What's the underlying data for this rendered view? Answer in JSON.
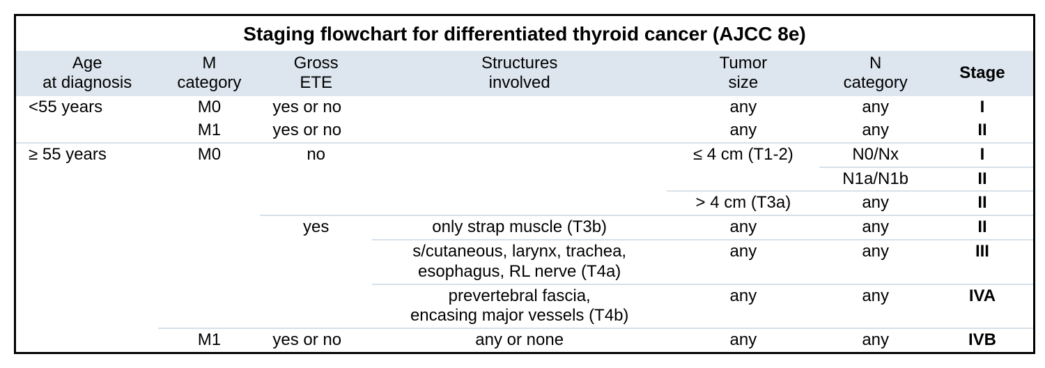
{
  "title": "Staging flowchart for differentiated thyroid cancer (AJCC 8e)",
  "colors": {
    "header_bg": "#dde6ef",
    "rule": "#d6e0ea",
    "border": "#000000",
    "text": "#000000",
    "background": "#ffffff"
  },
  "typography": {
    "title_fontsize_pt": 21,
    "cell_fontsize_pt": 18,
    "font_family": "Arial"
  },
  "columns": [
    {
      "key": "age",
      "label": "Age\nat diagnosis",
      "width_pct": 14
    },
    {
      "key": "m",
      "label": "M\ncategory",
      "width_pct": 10
    },
    {
      "key": "ete",
      "label": "Gross\nETE",
      "width_pct": 11
    },
    {
      "key": "struct",
      "label": "Structures\ninvolved",
      "width_pct": 29
    },
    {
      "key": "size",
      "label": "Tumor\nsize",
      "width_pct": 15
    },
    {
      "key": "n",
      "label": "N\ncategory",
      "width_pct": 11
    },
    {
      "key": "stage",
      "label": "Stage",
      "width_pct": 10,
      "bold": true
    }
  ],
  "rows": [
    {
      "age": "<55 years",
      "m": "M0",
      "ete": "yes or no",
      "struct": "",
      "size": "any",
      "n": "any",
      "stage": "I",
      "sep_from": null
    },
    {
      "age": "",
      "m": "M1",
      "ete": "yes or no",
      "struct": "",
      "size": "any",
      "n": "any",
      "stage": "II",
      "sep_from": null
    },
    {
      "age": "≥ 55 years",
      "m": "M0",
      "ete": "no",
      "struct": "",
      "size": "≤ 4 cm (T1-2)",
      "n": "N0/Nx",
      "stage": "I",
      "sep_from": 1
    },
    {
      "age": "",
      "m": "",
      "ete": "",
      "struct": "",
      "size": "",
      "n": "N1a/N1b",
      "stage": "II",
      "sep_from": 6
    },
    {
      "age": "",
      "m": "",
      "ete": "",
      "struct": "",
      "size": "> 4 cm (T3a)",
      "n": "any",
      "stage": "II",
      "sep_from": 5
    },
    {
      "age": "",
      "m": "",
      "ete": "yes",
      "struct": "only strap muscle (T3b)",
      "size": "any",
      "n": "any",
      "stage": "II",
      "sep_from": 3
    },
    {
      "age": "",
      "m": "",
      "ete": "",
      "struct": "s/cutaneous, larynx, trachea,\nesophagus, RL nerve (T4a)",
      "size": "any",
      "n": "any",
      "stage": "III",
      "sep_from": 4
    },
    {
      "age": "",
      "m": "",
      "ete": "",
      "struct": "prevertebral fascia,\nencasing major vessels (T4b)",
      "size": "any",
      "n": "any",
      "stage": "IVA",
      "sep_from": 4
    },
    {
      "age": "",
      "m": "M1",
      "ete": "yes or no",
      "struct": "any or none",
      "size": "any",
      "n": "any",
      "stage": "IVB",
      "sep_from": 2
    }
  ]
}
